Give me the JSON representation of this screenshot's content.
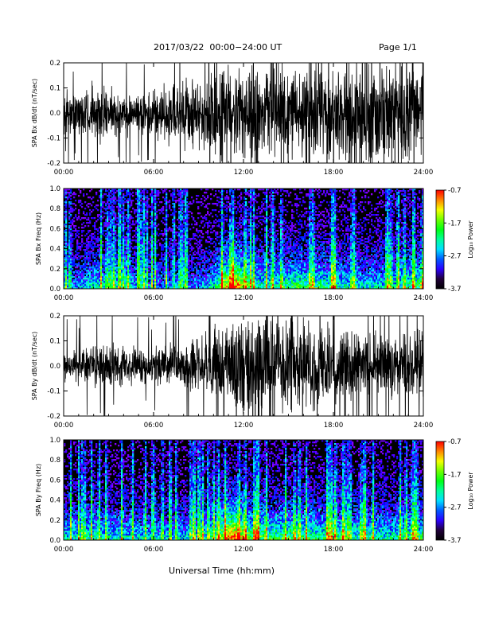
{
  "header": {
    "title": "2017/03/22  00:00−24:00 UT",
    "page": "Page 1/1"
  },
  "xaxis_title": "Universal Time (hh:mm)",
  "chart_data": [
    {
      "type": "line",
      "ylabel": "SPA Bx dB/dt (nT/sec)",
      "xlim": [
        0,
        24
      ],
      "ylim": [
        -0.2,
        0.2
      ],
      "xticks": [
        "00:00",
        "06:00",
        "12:00",
        "18:00",
        "24:00"
      ],
      "yticks": [
        "-0.2",
        "-0.1",
        "0.0",
        "0.1",
        "0.2"
      ],
      "x_hours": [
        0,
        1,
        2,
        3,
        4,
        5,
        6,
        7,
        8,
        9,
        9.5,
        10,
        10.5,
        11,
        12,
        13,
        14,
        15,
        16,
        17,
        18,
        19,
        20,
        21,
        22,
        23,
        24
      ],
      "envelope": [
        0.09,
        0.1,
        0.13,
        0.11,
        0.1,
        0.09,
        0.1,
        0.12,
        0.13,
        0.16,
        0.19,
        0.22,
        0.22,
        0.22,
        0.22,
        0.22,
        0.22,
        0.22,
        0.22,
        0.22,
        0.22,
        0.22,
        0.22,
        0.22,
        0.22,
        0.22,
        0.22
      ]
    },
    {
      "type": "heatmap",
      "ylabel": "SPA Bx Freq (Hz)",
      "xlim": [
        0,
        24
      ],
      "ylim": [
        0,
        1.0
      ],
      "xticks": [
        "00:00",
        "06:00",
        "12:00",
        "18:00",
        "24:00"
      ],
      "yticks": [
        "0.0",
        "0.2",
        "0.4",
        "0.6",
        "0.8",
        "1.0"
      ],
      "colorbar": {
        "label": "Log₁₀ Power",
        "ticks": [
          "-0.7",
          "-1.7",
          "-2.7",
          "-3.7"
        ],
        "range": [
          -3.7,
          -0.7
        ]
      },
      "x_hours": [
        0,
        1,
        2,
        3,
        4,
        5,
        6,
        7,
        8,
        9,
        10,
        10.5,
        11,
        11.5,
        12,
        12.5,
        13,
        14,
        15,
        16,
        17,
        18,
        19,
        20,
        21,
        22,
        23,
        24
      ],
      "activity": [
        0.35,
        0.35,
        0.45,
        0.4,
        0.4,
        0.35,
        0.3,
        0.3,
        0.3,
        0.3,
        0.45,
        0.7,
        0.85,
        1.0,
        0.75,
        0.55,
        0.5,
        0.5,
        0.55,
        0.6,
        0.55,
        0.5,
        0.45,
        0.45,
        0.45,
        0.45,
        0.55,
        0.6
      ]
    },
    {
      "type": "line",
      "ylabel": "SPA By dB/dt (nT/sec)",
      "xlim": [
        0,
        24
      ],
      "ylim": [
        -0.2,
        0.2
      ],
      "xticks": [
        "00:00",
        "06:00",
        "12:00",
        "18:00",
        "24:00"
      ],
      "yticks": [
        "-0.2",
        "-0.1",
        "0.0",
        "0.1",
        "0.2"
      ],
      "x_hours": [
        0,
        1,
        2,
        3,
        4,
        5,
        6,
        7,
        8,
        9,
        10,
        11,
        12,
        13,
        14,
        15,
        16,
        17,
        18,
        19,
        20,
        21,
        22,
        23,
        24
      ],
      "envelope": [
        0.08,
        0.08,
        0.1,
        0.09,
        0.08,
        0.08,
        0.08,
        0.09,
        0.1,
        0.12,
        0.15,
        0.2,
        0.22,
        0.22,
        0.22,
        0.2,
        0.19,
        0.18,
        0.17,
        0.16,
        0.15,
        0.14,
        0.14,
        0.15,
        0.16
      ]
    },
    {
      "type": "heatmap",
      "ylabel": "SPA By Freq (Hz)",
      "xlim": [
        0,
        24
      ],
      "ylim": [
        0,
        1.0
      ],
      "xticks": [
        "00:00",
        "06:00",
        "12:00",
        "18:00",
        "24:00"
      ],
      "yticks": [
        "0.0",
        "0.2",
        "0.4",
        "0.6",
        "0.8",
        "1.0"
      ],
      "colorbar": {
        "label": "Log₁₀ Power",
        "ticks": [
          "-0.7",
          "-1.7",
          "-2.7",
          "-3.7"
        ],
        "range": [
          -3.7,
          -0.7
        ]
      },
      "x_hours": [
        0,
        1,
        2,
        3,
        4,
        5,
        6,
        7,
        8,
        9,
        10,
        10.5,
        11,
        11.5,
        12,
        12.5,
        13,
        14,
        15,
        16,
        17,
        18,
        19,
        20,
        21,
        22,
        23,
        24
      ],
      "activity": [
        0.45,
        0.45,
        0.5,
        0.45,
        0.45,
        0.4,
        0.4,
        0.4,
        0.4,
        0.45,
        0.55,
        0.75,
        0.9,
        1.0,
        0.8,
        0.6,
        0.6,
        0.6,
        0.6,
        0.6,
        0.55,
        0.55,
        0.5,
        0.5,
        0.5,
        0.5,
        0.55,
        0.6
      ]
    }
  ]
}
